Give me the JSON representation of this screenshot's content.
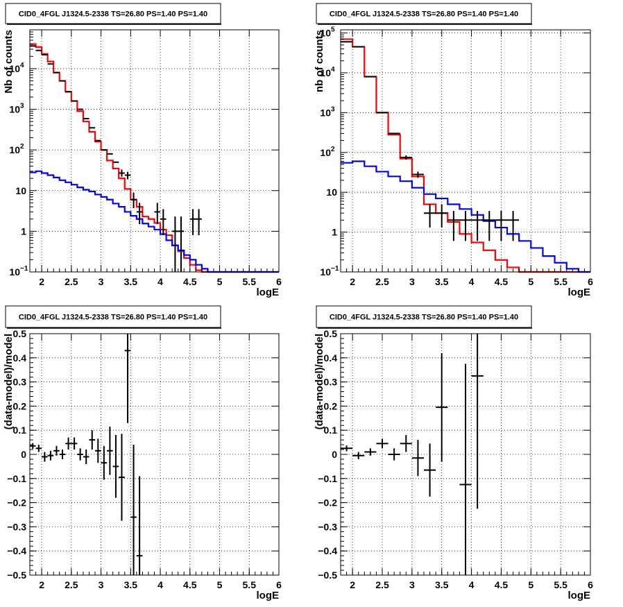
{
  "chart_data": [
    {
      "type": "line",
      "title": "CID0_4FGL J1324.5-2338 TS=26.80 PS=1.40 PS=1.40",
      "xlabel": "logE",
      "ylabel": "Nb of counts",
      "xlim": [
        1.8,
        6.0
      ],
      "ylim": [
        0.1,
        90000
      ],
      "yscale": "log",
      "grid": true,
      "xticks": [
        {
          "v": 2,
          "label": "2"
        },
        {
          "v": 2.5,
          "label": "2.5"
        },
        {
          "v": 3,
          "label": "3"
        },
        {
          "v": 3.5,
          "label": "3.5"
        },
        {
          "v": 4,
          "label": "4"
        },
        {
          "v": 4.5,
          "label": "4.5"
        },
        {
          "v": 5,
          "label": "5"
        },
        {
          "v": 5.5,
          "label": "5.5"
        },
        {
          "v": 6,
          "label": "6"
        }
      ],
      "yticks": [
        {
          "v": 0.1,
          "label": "10",
          "sup": "−1"
        },
        {
          "v": 1,
          "label": "1"
        },
        {
          "v": 10,
          "label": "10"
        },
        {
          "v": 100,
          "label": "10",
          "sup": "2"
        },
        {
          "v": 1000,
          "label": "10",
          "sup": "3"
        },
        {
          "v": 10000,
          "label": "10",
          "sup": "4"
        }
      ],
      "bin_edges": [
        1.8,
        1.9,
        2.0,
        2.1,
        2.2,
        2.3,
        2.4,
        2.5,
        2.6,
        2.7,
        2.8,
        2.9,
        3.0,
        3.1,
        3.2,
        3.3,
        3.4,
        3.5,
        3.6,
        3.7,
        3.8,
        3.9,
        4.0,
        4.1,
        4.2,
        4.3,
        4.4,
        4.5,
        4.6,
        4.7,
        4.8,
        4.9,
        5.0,
        5.1,
        5.2,
        5.3,
        5.4,
        5.5,
        5.6,
        5.7,
        5.8,
        5.9,
        6.0
      ],
      "series": [
        {
          "role": "total",
          "color": "#ff0000",
          "values": [
            40000,
            34000,
            23000,
            15000,
            8000,
            5000,
            2700,
            1600,
            900,
            500,
            280,
            160,
            100,
            55,
            35,
            20,
            11,
            6,
            4,
            2.3,
            2,
            1.6,
            1.1,
            0.8,
            0.45,
            0.32,
            0.22,
            0.15,
            0.11,
            0.1,
            0.1,
            0.1,
            0.1,
            0.1,
            0.1,
            0.1,
            0.1,
            0.1,
            0.1,
            0.1,
            0.1,
            0.1
          ]
        },
        {
          "role": "background",
          "color": "#0000ff",
          "values": [
            28,
            30,
            27,
            24,
            21,
            18,
            16,
            14,
            12,
            10.5,
            9.5,
            8,
            7,
            6,
            4.8,
            4,
            3,
            2.4,
            2,
            1.55,
            1.3,
            1.1,
            0.85,
            0.6,
            0.45,
            0.34,
            0.26,
            0.2,
            0.15,
            0.12,
            0.1,
            0.1,
            0.1,
            0.1,
            0.1,
            0.1,
            0.1,
            0.1,
            0.1,
            0.1,
            0.1,
            0.1
          ]
        }
      ],
      "points": [
        {
          "x": 1.85,
          "y": 36000
        },
        {
          "x": 1.95,
          "y": 28000
        },
        {
          "x": 2.05,
          "y": 22000
        },
        {
          "x": 2.15,
          "y": 13000
        },
        {
          "x": 2.25,
          "y": 8000
        },
        {
          "x": 2.35,
          "y": 5000
        },
        {
          "x": 2.45,
          "y": 2700
        },
        {
          "x": 2.55,
          "y": 1600
        },
        {
          "x": 2.65,
          "y": 1000
        },
        {
          "x": 2.75,
          "y": 590
        },
        {
          "x": 2.85,
          "y": 350
        },
        {
          "x": 2.95,
          "y": 170
        },
        {
          "x": 3.05,
          "y": 100
        },
        {
          "x": 3.15,
          "y": 80
        },
        {
          "x": 3.25,
          "y": 50
        },
        {
          "x": 3.35,
          "y": 27,
          "ylo": 22,
          "yhi": 33
        },
        {
          "x": 3.45,
          "y": 24,
          "ylo": 19,
          "yhi": 29
        },
        {
          "x": 3.55,
          "y": 6,
          "ylo": 3.7,
          "yhi": 9
        },
        {
          "x": 3.65,
          "y": 3,
          "ylo": 1.5,
          "yhi": 5
        },
        {
          "x": 3.95,
          "y": 3,
          "ylo": 1.5,
          "yhi": 5
        },
        {
          "x": 4.05,
          "y": 2,
          "ylo": 0.8,
          "yhi": 3.5
        },
        {
          "x": 4.25,
          "y": 1,
          "ylo": 0.1,
          "yhi": 2.3
        },
        {
          "x": 4.35,
          "y": 1,
          "ylo": 0.1,
          "yhi": 2.3
        },
        {
          "x": 4.55,
          "y": 2,
          "ylo": 0.8,
          "yhi": 3.5
        },
        {
          "x": 4.65,
          "y": 2,
          "ylo": 0.8,
          "yhi": 3.5
        }
      ]
    },
    {
      "type": "line",
      "title": "CID0_4FGL J1324.5-2338 TS=26.80 PS=1.40 PS=1.40",
      "xlabel": "logE",
      "ylabel": "nb of counts",
      "xlim": [
        1.8,
        6.0
      ],
      "ylim": [
        0.1,
        120000
      ],
      "yscale": "log",
      "grid": true,
      "xticks": [
        {
          "v": 2,
          "label": "2"
        },
        {
          "v": 2.5,
          "label": "2.5"
        },
        {
          "v": 3,
          "label": "3"
        },
        {
          "v": 3.5,
          "label": "3.5"
        },
        {
          "v": 4,
          "label": "4"
        },
        {
          "v": 4.5,
          "label": "4.5"
        },
        {
          "v": 5,
          "label": "5"
        },
        {
          "v": 5.5,
          "label": "5.5"
        },
        {
          "v": 6,
          "label": "6"
        }
      ],
      "yticks": [
        {
          "v": 0.1,
          "label": "10",
          "sup": "−1"
        },
        {
          "v": 1,
          "label": "1"
        },
        {
          "v": 10,
          "label": "10"
        },
        {
          "v": 100,
          "label": "10",
          "sup": "2"
        },
        {
          "v": 1000,
          "label": "10",
          "sup": "3"
        },
        {
          "v": 10000,
          "label": "10",
          "sup": "4"
        },
        {
          "v": 100000,
          "label": "10",
          "sup": "5"
        }
      ],
      "bin_edges": [
        1.8,
        2.0,
        2.2,
        2.4,
        2.6,
        2.8,
        3.0,
        3.2,
        3.4,
        3.6,
        3.8,
        4.0,
        4.2,
        4.4,
        4.6,
        4.8,
        5.0,
        5.2,
        5.4,
        5.6,
        5.8,
        6.0
      ],
      "series": [
        {
          "role": "total",
          "color": "#ff0000",
          "values": [
            70000,
            45000,
            8000,
            1000,
            280,
            70,
            25,
            5,
            3,
            1.8,
            0.9,
            0.55,
            0.35,
            0.2,
            0.13,
            0.1,
            0.1,
            0.1,
            0.1,
            0.1,
            0.1
          ]
        },
        {
          "role": "background",
          "color": "#0000ff",
          "values": [
            55,
            60,
            45,
            33,
            25,
            19,
            13,
            9,
            7,
            5,
            3.8,
            2.7,
            1.9,
            1.3,
            0.9,
            0.6,
            0.4,
            0.25,
            0.17,
            0.12,
            0.1
          ]
        }
      ],
      "points": [
        {
          "x": 1.9,
          "y": 60000
        },
        {
          "x": 2.1,
          "y": 45000
        },
        {
          "x": 2.3,
          "y": 8000
        },
        {
          "x": 2.5,
          "y": 1000
        },
        {
          "x": 2.7,
          "y": 300
        },
        {
          "x": 2.9,
          "y": 75,
          "ylo": 66,
          "yhi": 84
        },
        {
          "x": 3.1,
          "y": 28,
          "ylo": 23,
          "yhi": 33
        },
        {
          "x": 3.3,
          "y": 3,
          "ylo": 1.3,
          "yhi": 5
        },
        {
          "x": 3.5,
          "y": 3,
          "ylo": 1.3,
          "yhi": 5
        },
        {
          "x": 3.7,
          "y": 2,
          "ylo": 0.6,
          "yhi": 3.4
        },
        {
          "x": 3.9,
          "y": 2,
          "ylo": 0.6,
          "yhi": 3.4
        },
        {
          "x": 4.1,
          "y": 2,
          "ylo": 0.6,
          "yhi": 3.4
        },
        {
          "x": 4.3,
          "y": 2,
          "ylo": 0.6,
          "yhi": 3.4
        },
        {
          "x": 4.5,
          "y": 2,
          "ylo": 0.6,
          "yhi": 3.4
        },
        {
          "x": 4.7,
          "y": 2,
          "ylo": 0.6,
          "yhi": 3.4
        }
      ]
    },
    {
      "type": "scatter",
      "title": "CID0_4FGL J1324.5-2338 TS=26.80 PS=1.40 PS=1.40",
      "xlabel": "logE",
      "ylabel": "(data-model)/model",
      "xlim": [
        1.8,
        6.0
      ],
      "ylim": [
        -0.5,
        0.5
      ],
      "grid": true,
      "xticks": [
        {
          "v": 2,
          "label": "2"
        },
        {
          "v": 2.5,
          "label": "2.5"
        },
        {
          "v": 3,
          "label": "3"
        },
        {
          "v": 3.5,
          "label": "3.5"
        },
        {
          "v": 4,
          "label": "4"
        },
        {
          "v": 4.5,
          "label": "4.5"
        },
        {
          "v": 5,
          "label": "5"
        },
        {
          "v": 5.5,
          "label": "5.5"
        },
        {
          "v": 6,
          "label": "6"
        }
      ],
      "yticks": [
        {
          "v": -0.5,
          "label": "−0.5"
        },
        {
          "v": -0.4,
          "label": "−0.4"
        },
        {
          "v": -0.3,
          "label": "−0.3"
        },
        {
          "v": -0.2,
          "label": "−0.2"
        },
        {
          "v": -0.1,
          "label": "−0.1"
        },
        {
          "v": 0,
          "label": "0"
        },
        {
          "v": 0.1,
          "label": "0.1"
        },
        {
          "v": 0.2,
          "label": "0.2"
        },
        {
          "v": 0.3,
          "label": "0.3"
        },
        {
          "v": 0.4,
          "label": "0.4"
        },
        {
          "v": 0.5,
          "label": "0.5"
        }
      ],
      "points": [
        {
          "x": 1.85,
          "y": 0.035,
          "yerr": 0.012
        },
        {
          "x": 1.95,
          "y": 0.025,
          "yerr": 0.015
        },
        {
          "x": 2.05,
          "y": -0.01,
          "yerr": 0.02
        },
        {
          "x": 2.15,
          "y": -0.005,
          "yerr": 0.02
        },
        {
          "x": 2.25,
          "y": 0.015,
          "yerr": 0.02
        },
        {
          "x": 2.35,
          "y": 0.0,
          "yerr": 0.02
        },
        {
          "x": 2.45,
          "y": 0.045,
          "yerr": 0.025
        },
        {
          "x": 2.55,
          "y": 0.045,
          "yerr": 0.025
        },
        {
          "x": 2.65,
          "y": 0.0,
          "yerr": 0.025
        },
        {
          "x": 2.75,
          "y": -0.01,
          "yerr": 0.03
        },
        {
          "x": 2.85,
          "y": 0.06,
          "yerr": 0.04
        },
        {
          "x": 2.95,
          "y": 0.015,
          "yerr": 0.05
        },
        {
          "x": 3.05,
          "y": -0.035,
          "yerr": 0.07
        },
        {
          "x": 3.15,
          "y": 0.015,
          "yerr": 0.1
        },
        {
          "x": 3.25,
          "y": -0.05,
          "yerr": 0.13
        },
        {
          "x": 3.35,
          "y": -0.095,
          "yerr": 0.18
        },
        {
          "x": 3.45,
          "y": 0.43,
          "yerr": 0.3
        },
        {
          "x": 3.55,
          "y": -0.26,
          "yerr": 0.3
        },
        {
          "x": 3.65,
          "y": -0.42,
          "yerr": 0.33
        }
      ]
    },
    {
      "type": "scatter",
      "title": "CID0_4FGL J1324.5-2338 TS=26.80 PS=1.40 PS=1.40",
      "xlabel": "logE",
      "ylabel": "(data-model)/model",
      "xlim": [
        1.8,
        6.0
      ],
      "ylim": [
        -0.5,
        0.5
      ],
      "grid": true,
      "xticks": [
        {
          "v": 2,
          "label": "2"
        },
        {
          "v": 2.5,
          "label": "2.5"
        },
        {
          "v": 3,
          "label": "3"
        },
        {
          "v": 3.5,
          "label": "3.5"
        },
        {
          "v": 4,
          "label": "4"
        },
        {
          "v": 4.5,
          "label": "4.5"
        },
        {
          "v": 5,
          "label": "5"
        },
        {
          "v": 5.5,
          "label": "5.5"
        },
        {
          "v": 6,
          "label": "6"
        }
      ],
      "yticks": [
        {
          "v": -0.5,
          "label": "−0.5"
        },
        {
          "v": -0.4,
          "label": "−0.4"
        },
        {
          "v": -0.3,
          "label": "−0.3"
        },
        {
          "v": -0.2,
          "label": "−0.2"
        },
        {
          "v": -0.1,
          "label": "−0.1"
        },
        {
          "v": 0,
          "label": "0"
        },
        {
          "v": 0.1,
          "label": "0.1"
        },
        {
          "v": 0.2,
          "label": "0.2"
        },
        {
          "v": 0.3,
          "label": "0.3"
        },
        {
          "v": 0.4,
          "label": "0.4"
        },
        {
          "v": 0.5,
          "label": "0.5"
        }
      ],
      "points": [
        {
          "x": 1.9,
          "y": 0.025,
          "yerr": 0.012
        },
        {
          "x": 2.1,
          "y": -0.005,
          "yerr": 0.015
        },
        {
          "x": 2.3,
          "y": 0.01,
          "yerr": 0.015
        },
        {
          "x": 2.5,
          "y": 0.045,
          "yerr": 0.02
        },
        {
          "x": 2.7,
          "y": 0.0,
          "yerr": 0.025
        },
        {
          "x": 2.9,
          "y": 0.045,
          "yerr": 0.035
        },
        {
          "x": 3.1,
          "y": -0.015,
          "yerr": 0.075
        },
        {
          "x": 3.3,
          "y": -0.065,
          "yerr": 0.11
        },
        {
          "x": 3.5,
          "y": 0.195,
          "yerr": 0.225
        },
        {
          "x": 3.9,
          "y": -0.125,
          "yerr": 0.5
        },
        {
          "x": 4.1,
          "y": 0.325,
          "yerr": 0.55
        }
      ]
    }
  ]
}
